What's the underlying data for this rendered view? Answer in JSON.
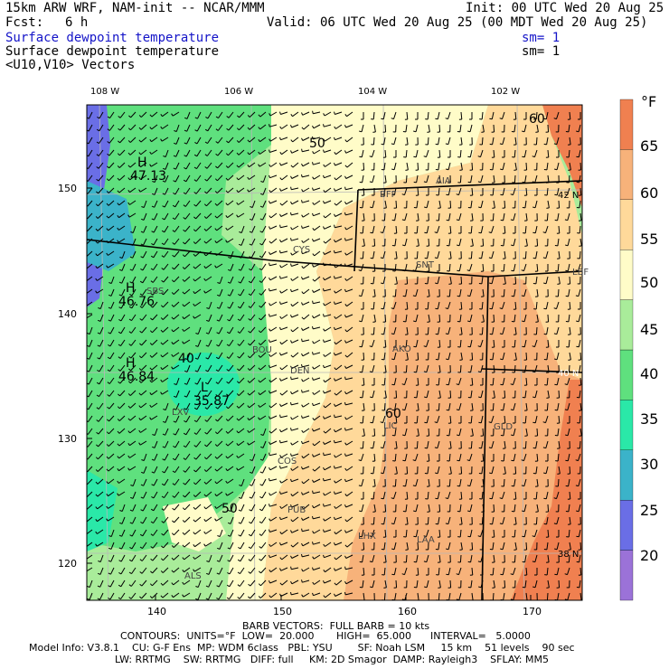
{
  "header": {
    "model_line": "15km ARW WRF, NAM-init -- NCAR/MMM",
    "init_line": "Init: 00 UTC Wed 20 Aug 25",
    "fcst_label": "Fcst:",
    "fcst_value": "6 h",
    "valid_line": "Valid: 06 UTC Wed 20 Aug 25 (00 MDT Wed 20 Aug 25)",
    "field1_name": "Surface dewpoint temperature",
    "field1_sm": "sm= 1",
    "field2_name": "Surface dewpoint temperature",
    "field2_sm": "sm= 1",
    "field3_name": "<U10,V10> Vectors"
  },
  "colors": {
    "field1": "#1414c8",
    "colorbar": [
      "#9b72d8",
      "#6a6ee6",
      "#3bb3c9",
      "#2ae8a8",
      "#5fe07e",
      "#a9ec9a",
      "#fffcc8",
      "#ffd99a",
      "#f7b27a",
      "#f08050"
    ]
  },
  "map": {
    "top_lon_labels": [
      "108 W",
      "106 W",
      "104 W",
      "102 W"
    ],
    "right_lat_labels": [
      "42 N",
      "40 N",
      "38 N"
    ],
    "left_y_ticks": [
      "150",
      "140",
      "130",
      "120"
    ],
    "bottom_x_ticks": [
      "140",
      "150",
      "160",
      "170"
    ],
    "stations": [
      "CYS",
      "BFF",
      "AIA",
      "SNT",
      "LBF",
      "BOU",
      "DEN",
      "AKO",
      "LIC",
      "COS",
      "PUB",
      "GLD",
      "LHX",
      "LAA",
      "ALS",
      "SBS",
      "LXV"
    ],
    "contour_labels": [
      "50",
      "60",
      "40",
      "50",
      "60",
      "H",
      "47.13",
      "H",
      "46.76",
      "H",
      "46.84",
      "L",
      "35.87"
    ]
  },
  "colorbar": {
    "unit": "°F",
    "labels": [
      "65",
      "60",
      "55",
      "50",
      "45",
      "40",
      "35",
      "30",
      "25",
      "20"
    ]
  },
  "footer": {
    "barb_line": "BARB VECTORS:  FULL BARB = 10 kts",
    "contours_line": "CONTOURS:  UNITS=°F  LOW=  20.000       HIGH=  65.000      INTERVAL=   5.0000",
    "model_info_line": "Model Info: V3.8.1    CU: G-F Ens  MP: WDM 6class   PBL: YSU        SF: Noah LSM     15 km    51 levels    90 sec",
    "physics_line": "LW: RRTMG    SW: RRTMG   DIFF: full     KM: 2D Smagor  DAMP: Rayleigh3    SFLAY: MM5"
  }
}
